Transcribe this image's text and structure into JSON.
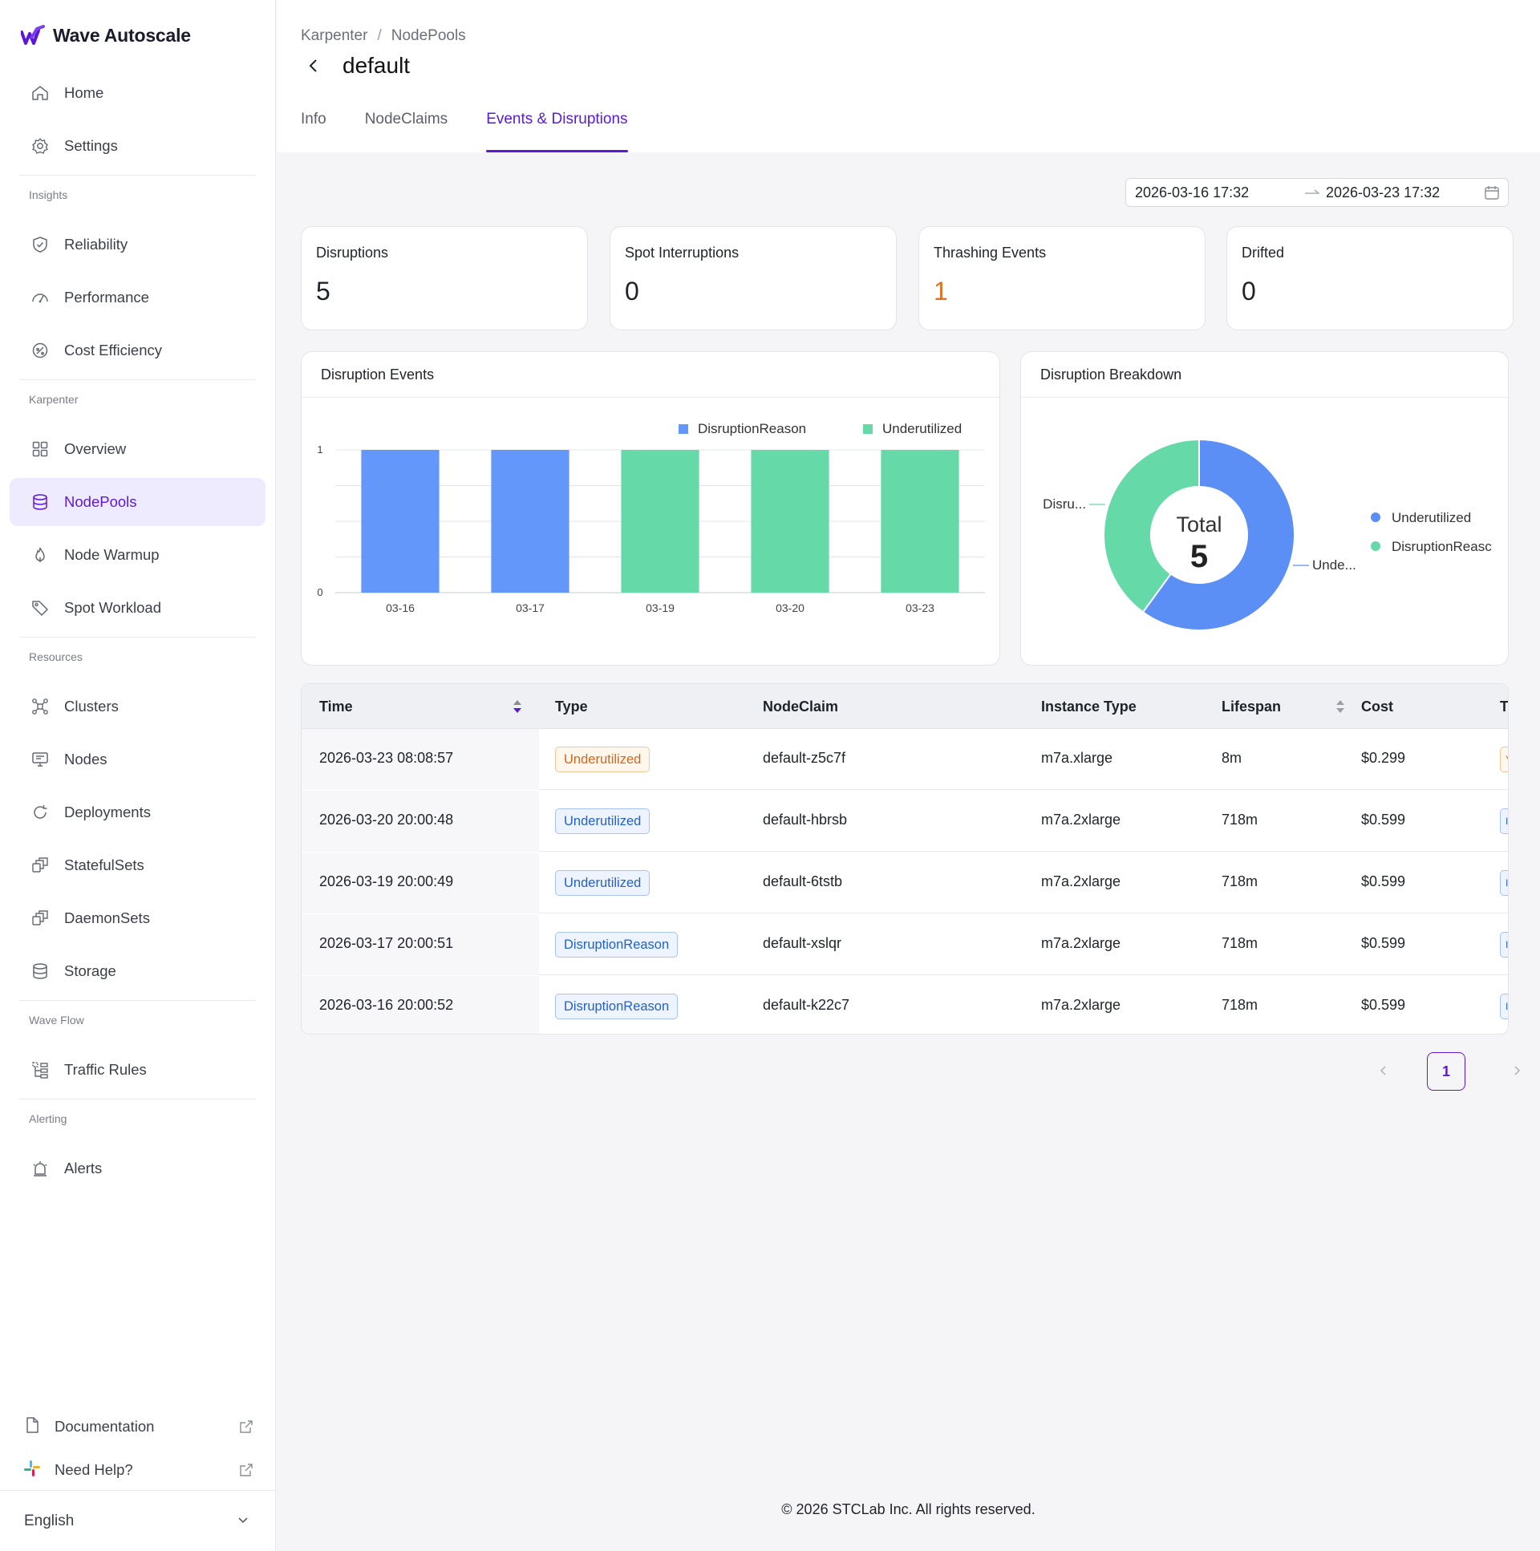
{
  "app": {
    "name": "Wave Autoscale"
  },
  "sidebar": {
    "top_items": [
      {
        "label": "Home",
        "icon": "home-icon"
      },
      {
        "label": "Settings",
        "icon": "gear-icon"
      }
    ],
    "sections": [
      {
        "title": "Insights",
        "items": [
          {
            "label": "Reliability",
            "icon": "shield-check-icon"
          },
          {
            "label": "Performance",
            "icon": "gauge-icon"
          },
          {
            "label": "Cost Efficiency",
            "icon": "cost-icon"
          }
        ]
      },
      {
        "title": "Karpenter",
        "items": [
          {
            "label": "Overview",
            "icon": "grid-icon"
          },
          {
            "label": "NodePools",
            "icon": "database-icon",
            "active": true
          },
          {
            "label": "Node Warmup",
            "icon": "flame-icon"
          },
          {
            "label": "Spot Workload",
            "icon": "tag-icon"
          }
        ]
      },
      {
        "title": "Resources",
        "items": [
          {
            "label": "Clusters",
            "icon": "cluster-icon"
          },
          {
            "label": "Nodes",
            "icon": "monitor-icon"
          },
          {
            "label": "Deployments",
            "icon": "refresh-icon"
          },
          {
            "label": "StatefulSets",
            "icon": "stack-icon"
          },
          {
            "label": "DaemonSets",
            "icon": "stack-icon"
          },
          {
            "label": "Storage",
            "icon": "database-icon"
          }
        ]
      },
      {
        "title": "Wave Flow",
        "items": [
          {
            "label": "Traffic Rules",
            "icon": "flow-icon"
          }
        ]
      },
      {
        "title": "Alerting",
        "items": [
          {
            "label": "Alerts",
            "icon": "alarm-icon"
          }
        ]
      }
    ],
    "bottom_links": [
      {
        "label": "Documentation",
        "icon": "document-icon"
      },
      {
        "label": "Need Help?",
        "icon": "slack-icon"
      }
    ],
    "language": "English"
  },
  "header": {
    "breadcrumb": [
      "Karpenter",
      "NodePools"
    ],
    "breadcrumb_sep": "/",
    "title": "default",
    "tabs": [
      "Info",
      "NodeClaims",
      "Events & Disruptions"
    ],
    "active_tab": 2
  },
  "date_range": {
    "start": "2026-03-16 17:32",
    "end": "2026-03-23 17:32"
  },
  "stats": [
    {
      "label": "Disruptions",
      "value": "5"
    },
    {
      "label": "Spot Interruptions",
      "value": "0"
    },
    {
      "label": "Thrashing Events",
      "value": "1",
      "color": "#e2701e"
    },
    {
      "label": "Drifted",
      "value": "0"
    }
  ],
  "chart_data": [
    {
      "type": "bar",
      "title": "Disruption Events",
      "categories": [
        "03-16",
        "03-17",
        "03-19",
        "03-20",
        "03-23"
      ],
      "series": [
        {
          "name": "DisruptionReason",
          "color": "#6497fa",
          "values": [
            1,
            1,
            0,
            0,
            0
          ]
        },
        {
          "name": "Underutilized",
          "color": "#66d9a8",
          "values": [
            0,
            0,
            1,
            1,
            1
          ]
        }
      ],
      "ylim": [
        0,
        1
      ],
      "yticks": [
        0,
        1
      ],
      "legend": "top-right",
      "grid": true
    },
    {
      "type": "pie",
      "title": "Disruption Breakdown",
      "slices": [
        {
          "name": "Underutilized",
          "value": 3,
          "color": "#5b8ff5",
          "label": "Unde..."
        },
        {
          "name": "DisruptionReason",
          "value": 2,
          "color": "#66d9a8",
          "label": "Disru..."
        }
      ],
      "center_label": "Total",
      "center_value": "5",
      "legend_labels": [
        "Underutilized",
        "DisruptionReasc"
      ],
      "legend": "right"
    }
  ],
  "table": {
    "columns": [
      "Time",
      "Type",
      "NodeClaim",
      "Instance Type",
      "Lifespan",
      "Cost",
      "Tl"
    ],
    "rows": [
      {
        "time": "2026-03-23 08:08:57",
        "type": "Underutilized",
        "tag": "orange",
        "nodeclaim": "default-z5c7f",
        "instance": "m7a.xlarge",
        "lifespan": "8m",
        "cost": "$0.299",
        "last": "Y"
      },
      {
        "time": "2026-03-20 20:00:48",
        "type": "Underutilized",
        "tag": "blue",
        "nodeclaim": "default-hbrsb",
        "instance": "m7a.2xlarge",
        "lifespan": "718m",
        "cost": "$0.599",
        "last": "I"
      },
      {
        "time": "2026-03-19 20:00:49",
        "type": "Underutilized",
        "tag": "blue",
        "nodeclaim": "default-6tstb",
        "instance": "m7a.2xlarge",
        "lifespan": "718m",
        "cost": "$0.599",
        "last": "I"
      },
      {
        "time": "2026-03-17 20:00:51",
        "type": "DisruptionReason",
        "tag": "blue",
        "nodeclaim": "default-xslqr",
        "instance": "m7a.2xlarge",
        "lifespan": "718m",
        "cost": "$0.599",
        "last": "I"
      },
      {
        "time": "2026-03-16 20:00:52",
        "type": "DisruptionReason",
        "tag": "blue",
        "nodeclaim": "default-k22c7",
        "instance": "m7a.2xlarge",
        "lifespan": "718m",
        "cost": "$0.599",
        "last": "I"
      }
    ]
  },
  "pagination": {
    "current": "1"
  },
  "footer": "© 2026 STCLab Inc. All rights reserved."
}
